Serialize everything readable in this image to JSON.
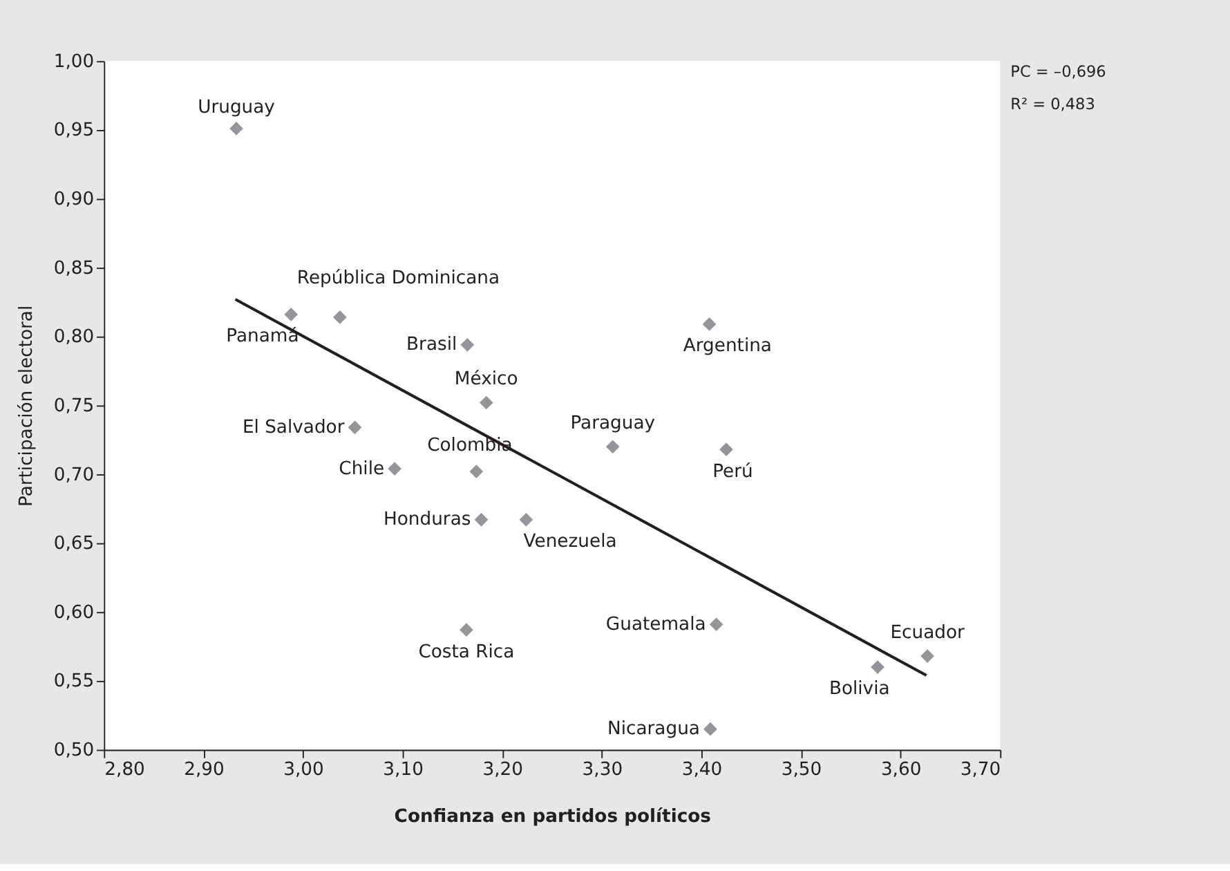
{
  "chart_data": {
    "type": "scatter",
    "xlabel": "Confianza en partidos políticos",
    "ylabel": "Participación electoral",
    "xlim": [
      2.8,
      3.7
    ],
    "xticks": [
      {
        "value": 2.8,
        "label": "2,80"
      },
      {
        "value": 2.9,
        "label": "2,90"
      },
      {
        "value": 3.0,
        "label": "3,00"
      },
      {
        "value": 3.1,
        "label": "3,10"
      },
      {
        "value": 3.2,
        "label": "3,20"
      },
      {
        "value": 3.3,
        "label": "3,30"
      },
      {
        "value": 3.4,
        "label": "3,40"
      },
      {
        "value": 3.5,
        "label": "3,50"
      },
      {
        "value": 3.6,
        "label": "3,60"
      },
      {
        "value": 3.7,
        "label": "3,70"
      }
    ],
    "ylim": [
      0.5,
      1.0
    ],
    "yticks": [
      {
        "value": 0.5,
        "label": "0,50"
      },
      {
        "value": 0.55,
        "label": "0,55"
      },
      {
        "value": 0.6,
        "label": "0,60"
      },
      {
        "value": 0.65,
        "label": "0,65"
      },
      {
        "value": 0.7,
        "label": "0,70"
      },
      {
        "value": 0.75,
        "label": "0,75"
      },
      {
        "value": 0.8,
        "label": "0,80"
      },
      {
        "value": 0.85,
        "label": "0,85"
      },
      {
        "value": 0.9,
        "label": "0,90"
      },
      {
        "value": 0.95,
        "label": "0,95"
      },
      {
        "value": 1.0,
        "label": "1,00"
      }
    ],
    "grid": false,
    "marker": "diamond",
    "series": [
      {
        "color": "#939598",
        "x": [
          2.933,
          2.988,
          3.037,
          3.165,
          3.184,
          3.052,
          3.092,
          3.174,
          3.179,
          3.224,
          3.164,
          3.311,
          3.425,
          3.408,
          3.415,
          3.409,
          3.577,
          3.627
        ],
        "values": [
          0.951,
          0.816,
          0.814,
          0.794,
          0.752,
          0.734,
          0.704,
          0.702,
          0.667,
          0.667,
          0.587,
          0.72,
          0.718,
          0.809,
          0.591,
          0.515,
          0.56,
          0.568
        ]
      },
      {
        "type": "line",
        "color": "#231f20",
        "line_style": "solid",
        "marker": "none",
        "x": [
          2.932,
          3.626
        ],
        "values": [
          0.827,
          0.554
        ]
      }
    ],
    "annotations": [
      {
        "text": "Uruguay",
        "x": 2.933,
        "y": 0.951
      },
      {
        "text": "Panamá",
        "x": 2.988,
        "y": 0.816
      },
      {
        "text": "República Dominicana",
        "x": 3.037,
        "y": 0.814
      },
      {
        "text": "Brasil",
        "x": 3.165,
        "y": 0.794
      },
      {
        "text": "México",
        "x": 3.184,
        "y": 0.752
      },
      {
        "text": "El Salvador",
        "x": 3.052,
        "y": 0.734
      },
      {
        "text": "Chile",
        "x": 3.092,
        "y": 0.704
      },
      {
        "text": "Colombia",
        "x": 3.174,
        "y": 0.702
      },
      {
        "text": "Honduras",
        "x": 3.179,
        "y": 0.667
      },
      {
        "text": "Venezuela",
        "x": 3.224,
        "y": 0.667
      },
      {
        "text": "Costa Rica",
        "x": 3.164,
        "y": 0.587
      },
      {
        "text": "Paraguay",
        "x": 3.311,
        "y": 0.72
      },
      {
        "text": "Perú",
        "x": 3.425,
        "y": 0.718
      },
      {
        "text": "Argentina",
        "x": 3.408,
        "y": 0.809
      },
      {
        "text": "Guatemala",
        "x": 3.415,
        "y": 0.591
      },
      {
        "text": "Nicaragua",
        "x": 3.409,
        "y": 0.515
      },
      {
        "text": "Bolivia",
        "x": 3.577,
        "y": 0.56
      },
      {
        "text": "Ecuador",
        "x": 3.627,
        "y": 0.568
      },
      "PC = –0,696",
      "R² = 0,483"
    ]
  }
}
